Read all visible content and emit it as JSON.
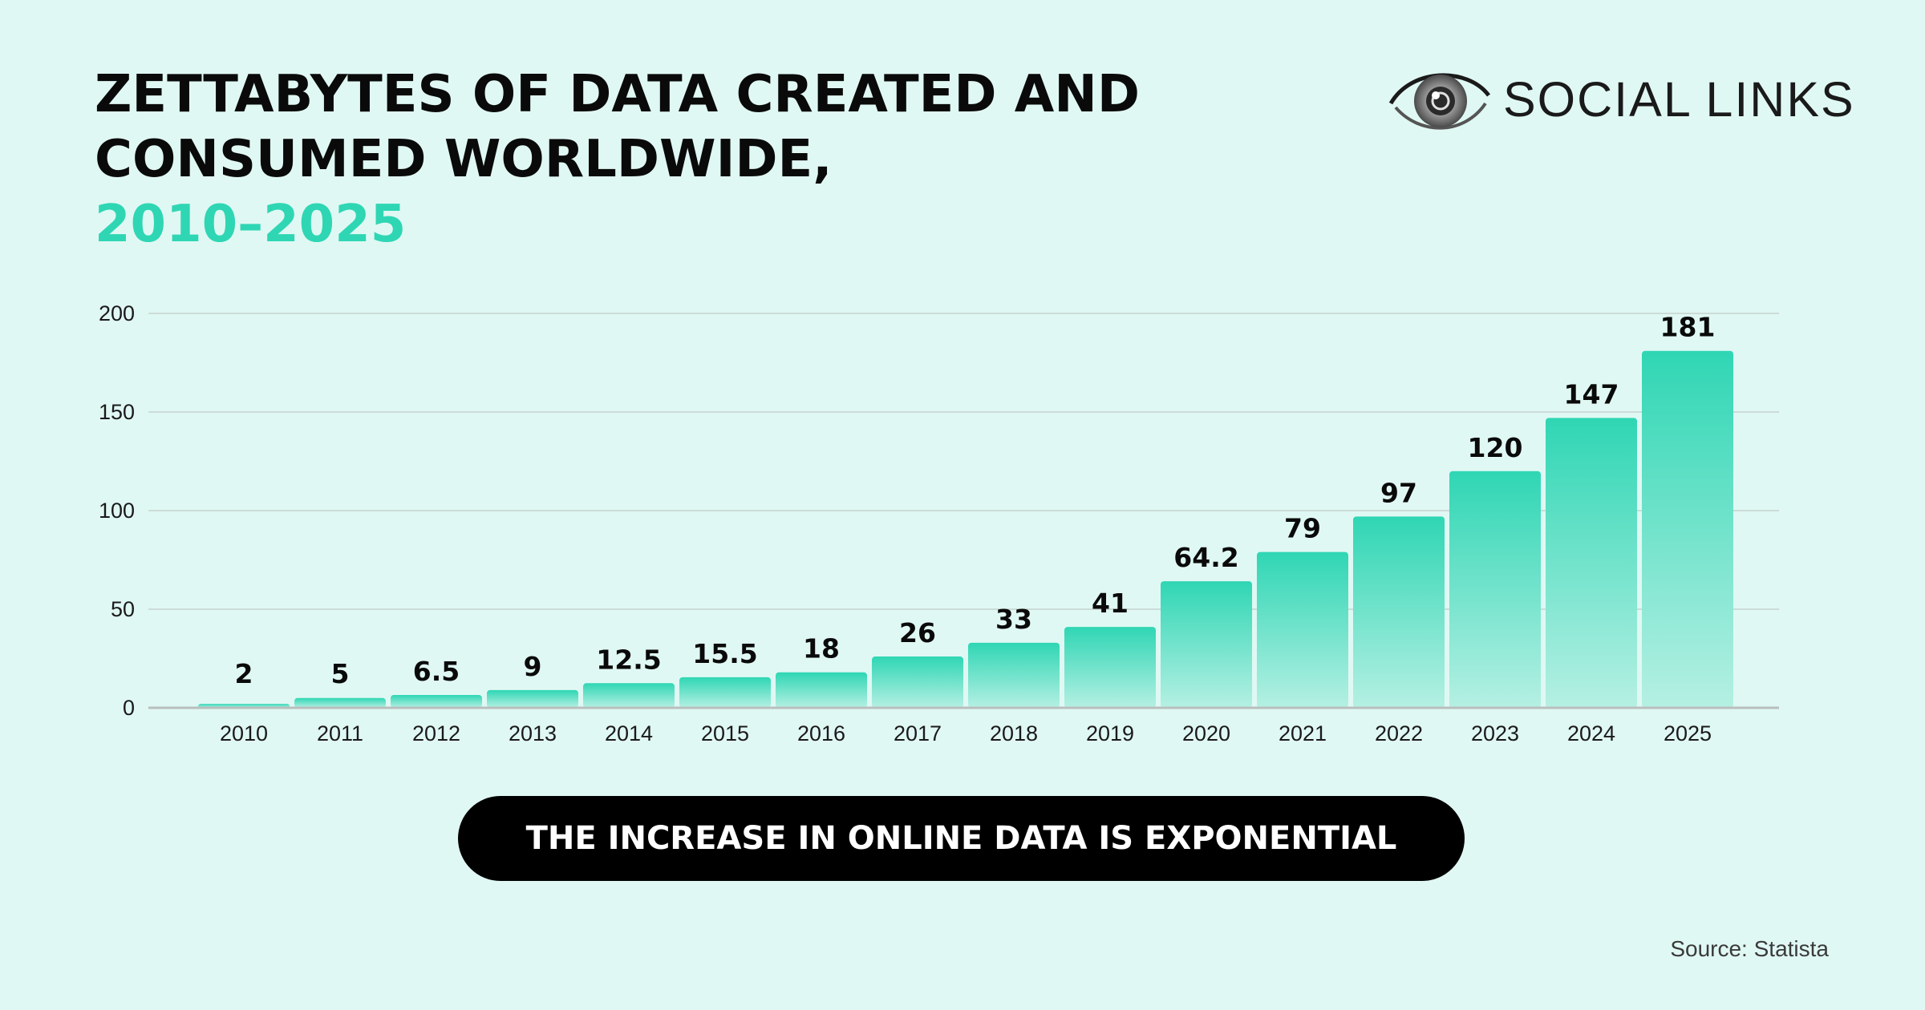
{
  "title": {
    "line1": "ZETTABYTES OF DATA CREATED AND",
    "line2": "CONSUMED WORLDWIDE,",
    "line3": "2010–2025"
  },
  "logo": {
    "text": "SOCIAL LINKS",
    "icon": "eye-icon"
  },
  "banner": {
    "text": "THE INCREASE IN ONLINE DATA IS EXPONENTIAL"
  },
  "source": "Source: Statista",
  "colors": {
    "background": "#e0f8f3",
    "bar_top": "#2fd6b4",
    "bar_bottom": "#b5f0e3",
    "accent": "#2fd6b4"
  },
  "chart_data": {
    "type": "bar",
    "categories": [
      "2010",
      "2011",
      "2012",
      "2013",
      "2014",
      "2015",
      "2016",
      "2017",
      "2018",
      "2019",
      "2020",
      "2021",
      "2022",
      "2023",
      "2024",
      "2025"
    ],
    "values": [
      2,
      5,
      6.5,
      9,
      12.5,
      15.5,
      18,
      26,
      33,
      41,
      64.2,
      79,
      97,
      120,
      147,
      181
    ],
    "value_labels": [
      "2",
      "5",
      "6.5",
      "9",
      "12.5",
      "15.5",
      "18",
      "26",
      "33",
      "41",
      "64.2",
      "79",
      "97",
      "120",
      "147",
      "181"
    ],
    "yticks": [
      0,
      50,
      100,
      150,
      200
    ],
    "ylim": [
      0,
      200
    ],
    "grid": true,
    "xlabel": "",
    "ylabel": ""
  }
}
